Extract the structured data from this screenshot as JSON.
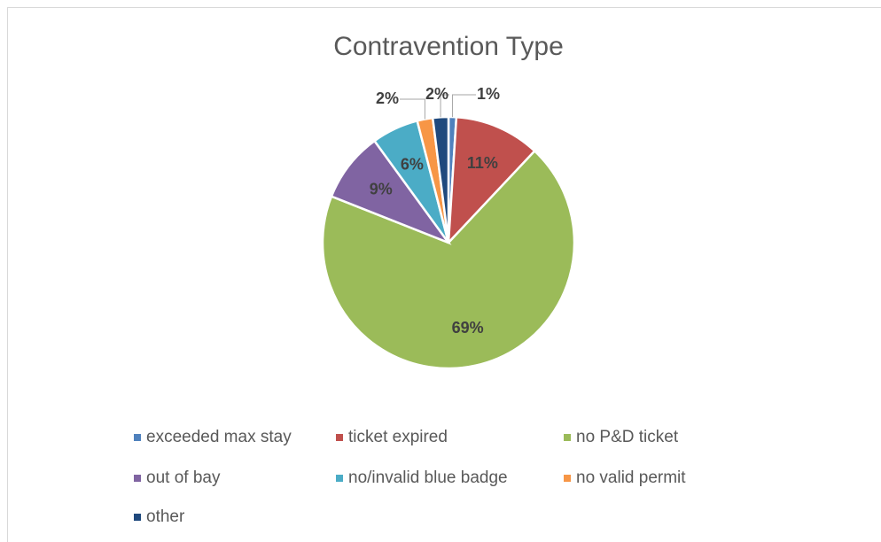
{
  "chart_data": {
    "type": "pie",
    "title": "Contravention Type",
    "categories": [
      "exceeded max stay",
      "ticket expired",
      "no P&D ticket",
      "out of bay",
      "no/invalid blue badge",
      "no valid permit",
      "other"
    ],
    "values": [
      1,
      11,
      69,
      9,
      6,
      2,
      2
    ],
    "value_labels": [
      "1%",
      "11%",
      "69%",
      "9%",
      "6%",
      "2%",
      "2%"
    ],
    "colors": [
      "#4f81bd",
      "#c0504d",
      "#9bbb59",
      "#8064a2",
      "#4bacc6",
      "#f79646",
      "#1f497d"
    ]
  }
}
